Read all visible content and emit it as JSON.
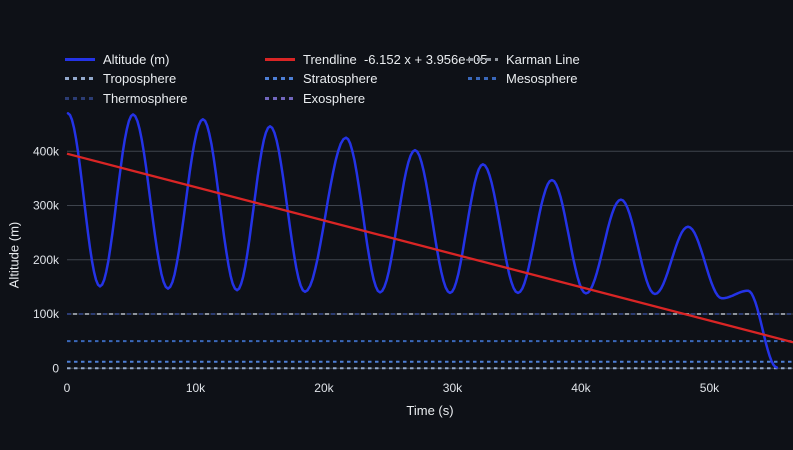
{
  "canvas": {
    "background": "#0e1117",
    "text_color": "#e9ecef"
  },
  "legend": {
    "items": [
      {
        "label": "Altitude (m)",
        "color": "#2433e6",
        "pattern": "solid"
      },
      {
        "label": "Trendline  -6.152 x + 3.956e+05",
        "color": "#d92525",
        "pattern": "solid"
      },
      {
        "label": "Karman Line",
        "color": "#8f959d",
        "pattern": "dash"
      },
      {
        "label": "Troposphere",
        "color": "#93a9cc",
        "pattern": "dot"
      },
      {
        "label": "Stratosphere",
        "color": "#4d7fd6",
        "pattern": "dot"
      },
      {
        "label": "Mesosphere",
        "color": "#3a68ba",
        "pattern": "dot"
      },
      {
        "label": "Thermosphere",
        "color": "#2b3c74",
        "pattern": "dot"
      },
      {
        "label": "Exosphere",
        "color": "#7166bd",
        "pattern": "dot"
      }
    ]
  },
  "chart_data": {
    "type": "line",
    "title": "",
    "xlabel": "Time (s)",
    "ylabel": "Altitude (m)",
    "xlim": [
      0,
      56500
    ],
    "ylim": [
      0,
      487000
    ],
    "grid": {
      "horizontal": true,
      "vertical": false,
      "color": "#3e444d"
    },
    "x_ticks": [
      {
        "value": 0,
        "label": "0"
      },
      {
        "value": 10000,
        "label": "10k"
      },
      {
        "value": 20000,
        "label": "20k"
      },
      {
        "value": 30000,
        "label": "30k"
      },
      {
        "value": 40000,
        "label": "40k"
      },
      {
        "value": 50000,
        "label": "50k"
      }
    ],
    "y_ticks": [
      {
        "value": 0,
        "label": "0"
      },
      {
        "value": 100000,
        "label": "100k"
      },
      {
        "value": 200000,
        "label": "200k"
      },
      {
        "value": 300000,
        "label": "300k"
      },
      {
        "value": 400000,
        "label": "400k"
      }
    ],
    "series": [
      {
        "name": "Altitude (m)",
        "color": "#2433e6",
        "style": "solid",
        "extremes_time_s_altitude_m": [
          [
            80,
            470000
          ],
          [
            2570,
            151000
          ],
          [
            5140,
            468000
          ],
          [
            7860,
            147000
          ],
          [
            10580,
            459000
          ],
          [
            13230,
            144000
          ],
          [
            15800,
            446000
          ],
          [
            18520,
            141000
          ],
          [
            21710,
            425000
          ],
          [
            24360,
            140000
          ],
          [
            27080,
            402000
          ],
          [
            29810,
            139000
          ],
          [
            32370,
            376000
          ],
          [
            35100,
            139000
          ],
          [
            37740,
            347000
          ],
          [
            40390,
            138000
          ],
          [
            43110,
            311000
          ],
          [
            45760,
            137000
          ],
          [
            48330,
            261000
          ],
          [
            50970,
            129000
          ],
          [
            53000,
            143000
          ],
          [
            55250,
            1500
          ]
        ]
      },
      {
        "name": "Trendline",
        "color": "#d92525",
        "style": "solid",
        "equation": "-6.152 x + 3.956e+05",
        "slope": -6.152,
        "intercept": 395600,
        "x_range": [
          0,
          56500
        ]
      }
    ],
    "reference_lines": [
      {
        "name": "Troposphere",
        "altitude_m": 0,
        "color": "#93a9cc",
        "visible": true
      },
      {
        "name": "Stratosphere",
        "altitude_m": 12000,
        "color": "#4d7fd6",
        "visible": true
      },
      {
        "name": "Mesosphere",
        "altitude_m": 50000,
        "color": "#3a68ba",
        "visible": true
      },
      {
        "name": "Thermosphere",
        "altitude_m": 100000,
        "color": "#2b3c74",
        "visible": true
      },
      {
        "name": "Karman Line",
        "altitude_m": 100000,
        "color": "#8f959d",
        "visible": true
      },
      {
        "name": "Exosphere",
        "color": "#7166bd",
        "visible": false
      }
    ]
  }
}
